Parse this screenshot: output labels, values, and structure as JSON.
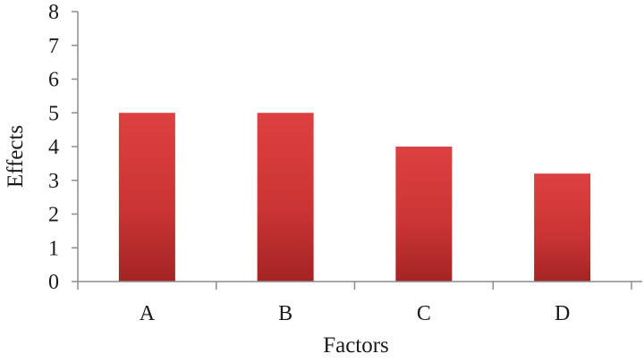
{
  "chart_data": {
    "type": "bar",
    "xlabel": "Factors",
    "ylabel": "Effects",
    "categories": [
      "A",
      "B",
      "C",
      "D"
    ],
    "values": [
      5,
      5,
      4,
      3.2
    ],
    "ylim": [
      0,
      8
    ],
    "yticks": [
      0,
      1,
      2,
      3,
      4,
      5,
      6,
      7,
      8
    ],
    "grid": false,
    "legend": "none",
    "colors": {
      "bar_top": "#dd4040",
      "bar_mid": "#cc3535",
      "bar_bottom": "#a42424",
      "axis": "#8c8c8c"
    }
  }
}
